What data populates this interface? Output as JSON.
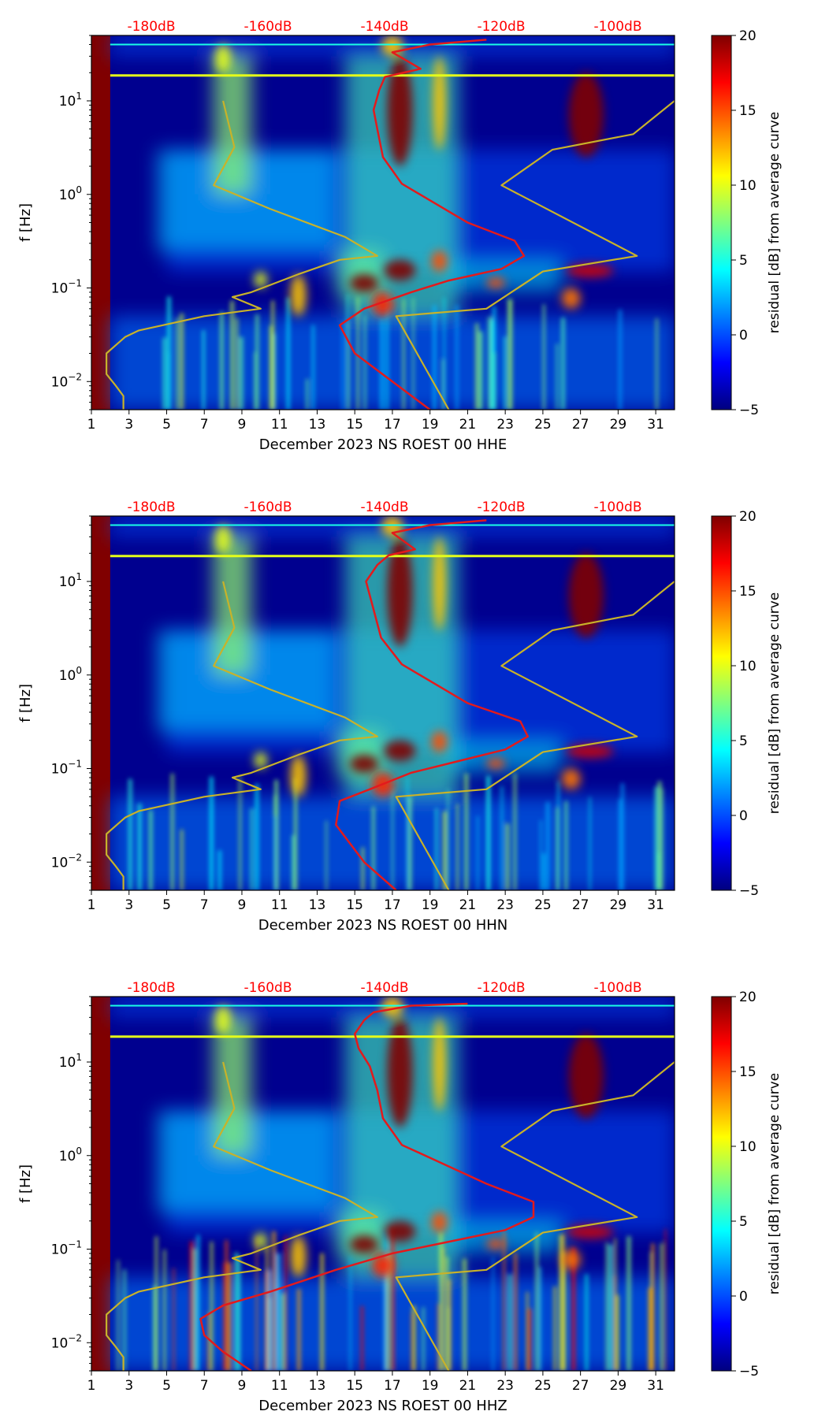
{
  "chart_data": [
    {
      "type": "heatmap",
      "title": "",
      "xlabel": "December 2023 NS ROEST 00 HHE",
      "ylabel": "f [Hz]",
      "x_ticks": [
        "1",
        "3",
        "5",
        "7",
        "9",
        "11",
        "13",
        "15",
        "17",
        "19",
        "21",
        "23",
        "25",
        "27",
        "29",
        "31"
      ],
      "y_ticks": [
        {
          "base": "10",
          "exp": "1",
          "value": 10
        },
        {
          "base": "10",
          "exp": "0",
          "value": 1
        },
        {
          "base": "10",
          "exp": "−1",
          "value": 0.1
        },
        {
          "base": "10",
          "exp": "−2",
          "value": 0.01
        }
      ],
      "xlim": [
        1,
        32
      ],
      "ylim_hz": [
        0.005,
        50
      ],
      "top_db_labels": [
        "-180dB",
        "-160dB",
        "-140dB",
        "-120dB",
        "-100dB"
      ],
      "colorbar": {
        "label": "residual [dB] from average curve",
        "min": -5,
        "max": 20,
        "ticks": [
          "20",
          "15",
          "10",
          "5",
          "0",
          "−5"
        ],
        "colormap": "jet"
      },
      "series": [
        {
          "name": "noise model (yellow)",
          "color": "#c8b22a",
          "points": [
            [
              8,
              10
            ],
            [
              8.6,
              3.2
            ],
            [
              7.5,
              1.25
            ],
            [
              10.5,
              0.7
            ],
            [
              14.5,
              0.35
            ],
            [
              16.2,
              0.22
            ],
            [
              14.2,
              0.2
            ],
            [
              12,
              0.14
            ],
            [
              9.5,
              0.09
            ],
            [
              8.5,
              0.08
            ],
            [
              10,
              0.06
            ],
            [
              7,
              0.05
            ],
            [
              3.5,
              0.035
            ],
            [
              2.8,
              0.03
            ],
            [
              1.8,
              0.02
            ],
            [
              1.8,
              0.012
            ],
            [
              2.3,
              0.009
            ],
            [
              2.7,
              0.007
            ],
            [
              2.7,
              0.005
            ]
          ]
        },
        {
          "name": "noise model (yellow) 2",
          "color": "#c8b22a",
          "points": [
            [
              20,
              0.005
            ],
            [
              17.2,
              0.05
            ],
            [
              22,
              0.06
            ],
            [
              25,
              0.15
            ],
            [
              30,
              0.22
            ],
            [
              22.8,
              1.25
            ],
            [
              25.5,
              3
            ],
            [
              29.8,
              4.4
            ],
            [
              32,
              10
            ]
          ]
        },
        {
          "name": "average PSD (red)",
          "color": "#e31a1c",
          "points": [
            [
              19,
              0.005
            ],
            [
              17,
              0.01
            ],
            [
              15,
              0.02
            ],
            [
              14.2,
              0.04
            ],
            [
              15.5,
              0.06
            ],
            [
              18,
              0.09
            ],
            [
              20,
              0.12
            ],
            [
              22.8,
              0.16
            ],
            [
              24,
              0.22
            ],
            [
              23.5,
              0.32
            ],
            [
              21,
              0.5
            ],
            [
              17.5,
              1.3
            ],
            [
              16.5,
              2.5
            ],
            [
              16.2,
              5
            ],
            [
              16,
              8
            ],
            [
              16.3,
              13
            ],
            [
              16.6,
              18
            ],
            [
              18.5,
              22
            ],
            [
              17,
              33
            ],
            [
              19,
              40
            ],
            [
              22,
              45
            ]
          ]
        }
      ]
    },
    {
      "type": "heatmap",
      "title": "",
      "xlabel": "December 2023 NS ROEST 00 HHN",
      "ylabel": "f [Hz]",
      "x_ticks": [
        "1",
        "3",
        "5",
        "7",
        "9",
        "11",
        "13",
        "15",
        "17",
        "19",
        "21",
        "23",
        "25",
        "27",
        "29",
        "31"
      ],
      "y_ticks": [
        {
          "base": "10",
          "exp": "1",
          "value": 10
        },
        {
          "base": "10",
          "exp": "0",
          "value": 1
        },
        {
          "base": "10",
          "exp": "−1",
          "value": 0.1
        },
        {
          "base": "10",
          "exp": "−2",
          "value": 0.01
        }
      ],
      "xlim": [
        1,
        32
      ],
      "ylim_hz": [
        0.005,
        50
      ],
      "top_db_labels": [
        "-180dB",
        "-160dB",
        "-140dB",
        "-120dB",
        "-100dB"
      ],
      "colorbar": {
        "label": "residual [dB] from average curve",
        "min": -5,
        "max": 20,
        "ticks": [
          "20",
          "15",
          "10",
          "5",
          "0",
          "−5"
        ],
        "colormap": "jet"
      },
      "series": [
        {
          "name": "noise model (yellow)",
          "color": "#c8b22a",
          "points": [
            [
              8,
              10
            ],
            [
              8.6,
              3.2
            ],
            [
              7.5,
              1.25
            ],
            [
              10.5,
              0.7
            ],
            [
              14.5,
              0.35
            ],
            [
              16.2,
              0.22
            ],
            [
              14.2,
              0.2
            ],
            [
              12,
              0.14
            ],
            [
              9.5,
              0.09
            ],
            [
              8.5,
              0.08
            ],
            [
              10,
              0.06
            ],
            [
              7,
              0.05
            ],
            [
              3.5,
              0.035
            ],
            [
              2.8,
              0.03
            ],
            [
              1.8,
              0.02
            ],
            [
              1.8,
              0.012
            ],
            [
              2.3,
              0.009
            ],
            [
              2.7,
              0.007
            ],
            [
              2.7,
              0.005
            ]
          ]
        },
        {
          "name": "noise model (yellow) 2",
          "color": "#c8b22a",
          "points": [
            [
              20,
              0.005
            ],
            [
              17.2,
              0.05
            ],
            [
              22,
              0.06
            ],
            [
              25,
              0.15
            ],
            [
              30,
              0.22
            ],
            [
              22.8,
              1.25
            ],
            [
              25.5,
              3
            ],
            [
              29.8,
              4.4
            ],
            [
              32,
              10
            ]
          ]
        },
        {
          "name": "average PSD (red)",
          "color": "#e31a1c",
          "points": [
            [
              17.2,
              0.005
            ],
            [
              15.5,
              0.01
            ],
            [
              14,
              0.025
            ],
            [
              14.2,
              0.045
            ],
            [
              15.8,
              0.06
            ],
            [
              18,
              0.09
            ],
            [
              20.5,
              0.12
            ],
            [
              23,
              0.16
            ],
            [
              24.2,
              0.22
            ],
            [
              23.8,
              0.32
            ],
            [
              21,
              0.5
            ],
            [
              17.5,
              1.3
            ],
            [
              16.4,
              2.5
            ],
            [
              16,
              5
            ],
            [
              15.6,
              10
            ],
            [
              16.2,
              15
            ],
            [
              16.8,
              19
            ],
            [
              18.2,
              22
            ],
            [
              17,
              33
            ],
            [
              19,
              40
            ],
            [
              22,
              45
            ]
          ]
        }
      ]
    },
    {
      "type": "heatmap",
      "title": "",
      "xlabel": "December 2023 NS ROEST 00 HHZ",
      "ylabel": "f [Hz]",
      "x_ticks": [
        "1",
        "3",
        "5",
        "7",
        "9",
        "11",
        "13",
        "15",
        "17",
        "19",
        "21",
        "23",
        "25",
        "27",
        "29",
        "31"
      ],
      "y_ticks": [
        {
          "base": "10",
          "exp": "1",
          "value": 10
        },
        {
          "base": "10",
          "exp": "0",
          "value": 1
        },
        {
          "base": "10",
          "exp": "−1",
          "value": 0.1
        },
        {
          "base": "10",
          "exp": "−2",
          "value": 0.01
        }
      ],
      "xlim": [
        1,
        32
      ],
      "ylim_hz": [
        0.005,
        50
      ],
      "top_db_labels": [
        "-180dB",
        "-160dB",
        "-140dB",
        "-120dB",
        "-100dB"
      ],
      "colorbar": {
        "label": "residual [dB] from average curve",
        "min": -5,
        "max": 20,
        "ticks": [
          "20",
          "15",
          "10",
          "5",
          "0",
          "−5"
        ],
        "colormap": "jet"
      },
      "series": [
        {
          "name": "noise model (yellow)",
          "color": "#c8b22a",
          "points": [
            [
              8,
              10
            ],
            [
              8.6,
              3.2
            ],
            [
              7.5,
              1.25
            ],
            [
              10.5,
              0.7
            ],
            [
              14.5,
              0.35
            ],
            [
              16.2,
              0.22
            ],
            [
              14.2,
              0.2
            ],
            [
              12,
              0.14
            ],
            [
              9.5,
              0.09
            ],
            [
              8.5,
              0.08
            ],
            [
              10,
              0.06
            ],
            [
              7,
              0.05
            ],
            [
              3.5,
              0.035
            ],
            [
              2.8,
              0.03
            ],
            [
              1.8,
              0.02
            ],
            [
              1.8,
              0.012
            ],
            [
              2.3,
              0.009
            ],
            [
              2.7,
              0.007
            ],
            [
              2.7,
              0.005
            ]
          ]
        },
        {
          "name": "noise model (yellow) 2",
          "color": "#c8b22a",
          "points": [
            [
              20,
              0.005
            ],
            [
              17.2,
              0.05
            ],
            [
              22,
              0.06
            ],
            [
              25,
              0.15
            ],
            [
              30,
              0.22
            ],
            [
              22.8,
              1.25
            ],
            [
              25.5,
              3
            ],
            [
              29.8,
              4.4
            ],
            [
              32,
              10
            ]
          ]
        },
        {
          "name": "average PSD (red)",
          "color": "#e31a1c",
          "points": [
            [
              9.5,
              0.005
            ],
            [
              8,
              0.008
            ],
            [
              7,
              0.012
            ],
            [
              6.8,
              0.018
            ],
            [
              8,
              0.025
            ],
            [
              10.5,
              0.035
            ],
            [
              14,
              0.06
            ],
            [
              17,
              0.09
            ],
            [
              20,
              0.12
            ],
            [
              23,
              0.16
            ],
            [
              24.5,
              0.22
            ],
            [
              24.5,
              0.32
            ],
            [
              22,
              0.5
            ],
            [
              17.5,
              1.3
            ],
            [
              16.5,
              2.5
            ],
            [
              16.2,
              5
            ],
            [
              15.8,
              9
            ],
            [
              15.2,
              14
            ],
            [
              15,
              20
            ],
            [
              15.5,
              28
            ],
            [
              16,
              34
            ],
            [
              18,
              40
            ],
            [
              21,
              42
            ]
          ]
        }
      ]
    }
  ]
}
